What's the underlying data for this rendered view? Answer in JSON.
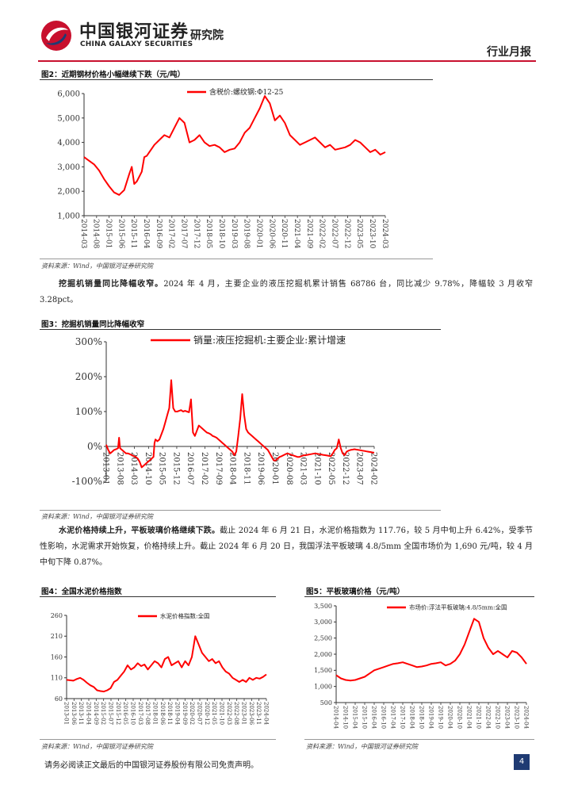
{
  "header": {
    "company_cn": "中国银河证券",
    "company_en": "CHINA GALAXY SECURITIES",
    "institute": "研究院",
    "report_type": "行业月报"
  },
  "figure2": {
    "title": "图2：近期钢材价格小幅继续下跌（元/吨）",
    "source": "资料来源：Wind，中国银河证券研究院",
    "chart_data": {
      "type": "line",
      "title": "",
      "xlabel": "",
      "ylabel": "",
      "ylim": [
        1000,
        6000
      ],
      "yticks": [
        "1,000",
        "2,000",
        "3,000",
        "4,000",
        "5,000",
        "6,000"
      ],
      "xticks": [
        "2014-03",
        "2014-08",
        "2015-01",
        "2015-06",
        "2015-11",
        "2016-04",
        "2016-09",
        "2017-02",
        "2017-07",
        "2017-12",
        "2018-05",
        "2018-10",
        "2019-03",
        "2019-08",
        "2020-01",
        "2020-06",
        "2020-11",
        "2021-04",
        "2021-09",
        "2022-02",
        "2022-07",
        "2022-12",
        "2023-05",
        "2023-10",
        "2024-03"
      ],
      "series": [
        {
          "name": "含税价:螺纹钢:Φ12-25",
          "color": "#ff0000",
          "x": [
            0,
            2,
            4,
            6,
            8,
            10,
            12,
            14,
            16,
            18,
            19,
            20,
            21,
            22,
            23,
            24,
            25,
            26,
            28,
            30,
            32,
            34,
            36,
            38,
            40,
            42,
            44,
            46,
            48,
            50,
            52,
            54,
            56,
            58,
            60,
            62,
            64,
            66,
            68,
            70,
            72,
            74,
            76,
            78,
            80,
            82,
            84,
            86,
            88,
            90,
            92,
            94,
            96,
            98,
            100,
            102,
            104,
            106,
            108,
            110,
            112,
            114,
            116,
            118,
            120
          ],
          "y": [
            3400,
            3250,
            3100,
            2850,
            2500,
            2200,
            1950,
            1850,
            2050,
            2700,
            3000,
            2300,
            2400,
            2600,
            2800,
            3400,
            3450,
            3600,
            3900,
            4100,
            4300,
            4200,
            4600,
            5000,
            4800,
            4000,
            4100,
            4300,
            4000,
            3850,
            3900,
            3800,
            3600,
            3700,
            3750,
            4000,
            4400,
            4600,
            5000,
            5400,
            5900,
            5600,
            4900,
            5100,
            4800,
            4300,
            4100,
            3900,
            4000,
            4100,
            4200,
            4000,
            3800,
            3900,
            3700,
            3750,
            3800,
            3900,
            4100,
            4000,
            3800,
            3600,
            3700,
            3500,
            3600
          ]
        }
      ]
    }
  },
  "para1": {
    "lead": "挖掘机销量同比降幅收窄。",
    "text": "2024 年 4 月，主要企业的液压挖掘机累计销售 68786 台，同比减少 9.78%，降幅较 3 月收窄 3.28pct。"
  },
  "figure3": {
    "title": "图3：挖掘机销量同比降幅收窄",
    "source": "资料来源：Wind，中国银河证券研究院",
    "chart_data": {
      "type": "line",
      "title": "",
      "xlabel": "",
      "ylabel": "",
      "ylim": [
        -100,
        300
      ],
      "yticks": [
        "-100%",
        "0%",
        "100%",
        "200%",
        "300%"
      ],
      "xticks": [
        "2013-01",
        "2013-08",
        "2014-03",
        "2014-10",
        "2015-05",
        "2015-12",
        "2016-07",
        "2017-02",
        "2017-09",
        "2018-04",
        "2018-11",
        "2019-06",
        "2020-01",
        "2020-08",
        "2021-03",
        "2021-10",
        "2022-05",
        "2022-12",
        "2023-07",
        "2024-02"
      ],
      "series": [
        {
          "name": "销量:液压挖掘机:主要企业:累计增速",
          "color": "#ff0000",
          "x": [
            0,
            1,
            2,
            3,
            4,
            5,
            6,
            6.5,
            7,
            8,
            9,
            10,
            11,
            12,
            13,
            14,
            15,
            16,
            17,
            18,
            19,
            20,
            21,
            22,
            23,
            24,
            24.5,
            25,
            26,
            27,
            28,
            29,
            30,
            31,
            32,
            33,
            34,
            35,
            36,
            37,
            38,
            39,
            40,
            41,
            42,
            43,
            44,
            45,
            46,
            47,
            48,
            49,
            50,
            51,
            52,
            53,
            54,
            55,
            56,
            57,
            58,
            59,
            60,
            61,
            62,
            63,
            64,
            65,
            66,
            67,
            68,
            69,
            70,
            71,
            72,
            73,
            74,
            75,
            76,
            77,
            78,
            79,
            80,
            81,
            82,
            83,
            84,
            85,
            86,
            87,
            88,
            89,
            90,
            91,
            92,
            93,
            94,
            95,
            96,
            97,
            98,
            99,
            100,
            101,
            102,
            103,
            104,
            105,
            106,
            107,
            108,
            109,
            110,
            111,
            112,
            113,
            114,
            115,
            116,
            117,
            118,
            119,
            120,
            121,
            122,
            123,
            124,
            125,
            126,
            127,
            128,
            129,
            130,
            131,
            132,
            133,
            134,
            135,
            136
          ],
          "y": [
            5,
            -10,
            -20,
            -15,
            -10,
            -8,
            -5,
            25,
            -5,
            -10,
            -15,
            -20,
            -20,
            -22,
            -25,
            -28,
            -30,
            -35,
            -45,
            -60,
            -55,
            -50,
            -45,
            -40,
            -35,
            -30,
            10,
            20,
            15,
            20,
            35,
            50,
            70,
            90,
            110,
            190,
            110,
            100,
            100,
            102,
            104,
            100,
            102,
            100,
            98,
            135,
            40,
            30,
            45,
            60,
            55,
            50,
            45,
            40,
            38,
            35,
            30,
            28,
            25,
            20,
            15,
            10,
            5,
            0,
            -5,
            -10,
            -15,
            -25,
            -15,
            30,
            80,
            150,
            90,
            50,
            40,
            35,
            30,
            25,
            20,
            15,
            10,
            5,
            0,
            -5,
            -10,
            -20,
            -30,
            -40,
            -40,
            -35,
            -30,
            -28,
            -25,
            -22,
            -20,
            -22,
            -24,
            -26,
            -28,
            -30,
            -30,
            -28,
            -26,
            -25,
            -24,
            -23,
            -22,
            -21,
            -20,
            -21,
            -22,
            -23,
            -24,
            -25,
            -26,
            -27,
            -28,
            -20,
            -10,
            -5,
            20,
            -5,
            -20,
            -25,
            -15,
            -12,
            -10,
            -9,
            -8,
            -9,
            -10,
            -11,
            -12,
            -13,
            -14,
            -15,
            -16,
            -17,
            -18
          ]
        }
      ]
    }
  },
  "para2": {
    "lead": "水泥价格持续上升，平板玻璃价格继续下跌。",
    "text": "截止 2024 年 6 月 21 日，水泥价格指数为 117.76，较 5 月中旬上升 6.42%，受季节性影响，水泥需求开始恢复，价格持续上升。截止 2024 年 6 月 20 日，我国浮法平板玻璃 4.8/5mm 全国市场价为 1,690 元/吨，较 4 月中旬下降 0.87%。"
  },
  "figure4": {
    "title": "图4：全国水泥价格指数",
    "source": "资料来源：Wind，中国银河证券研究院",
    "chart_data": {
      "type": "line",
      "title": "",
      "xlabel": "",
      "ylabel": "",
      "ylim": [
        60,
        260
      ],
      "yticks": [
        "60",
        "110",
        "160",
        "210",
        "260"
      ],
      "xticks": [
        "2013-01",
        "2013-06",
        "2013-11",
        "2014-04",
        "2014-09",
        "2015-02",
        "2015-07",
        "2015-12",
        "2016-05",
        "2016-10",
        "2017-03",
        "2017-08",
        "2018-01",
        "2018-06",
        "2018-11",
        "2019-04",
        "2019-09",
        "2020-02",
        "2020-07",
        "2020-12",
        "2021-05",
        "2021-10",
        "2022-03",
        "2022-08",
        "2023-01",
        "2023-06",
        "2023-11",
        "2024-04"
      ],
      "series": [
        {
          "name": "水泥价格指数:全国",
          "color": "#ff0000",
          "x": [
            0,
            4,
            8,
            12,
            16,
            20,
            24,
            28,
            32,
            36,
            40,
            44,
            48,
            52,
            56,
            60,
            64,
            68,
            72,
            76,
            80,
            84,
            88,
            92,
            96,
            100,
            104,
            108,
            112,
            116,
            120,
            124,
            128,
            132,
            136,
            140,
            144,
            148,
            152,
            156,
            160,
            164,
            168,
            172,
            176,
            180,
            184,
            188,
            192,
            196,
            200,
            204,
            208,
            212,
            216,
            220,
            224,
            228,
            232,
            236
          ],
          "y": [
            105,
            104,
            103,
            107,
            110,
            105,
            98,
            92,
            88,
            80,
            78,
            77,
            80,
            85,
            100,
            105,
            115,
            125,
            140,
            130,
            135,
            145,
            138,
            142,
            130,
            140,
            150,
            145,
            135,
            155,
            160,
            140,
            145,
            150,
            135,
            150,
            140,
            160,
            210,
            190,
            170,
            160,
            150,
            155,
            145,
            150,
            135,
            125,
            120,
            110,
            105,
            100,
            105,
            100,
            110,
            105,
            110,
            108,
            112,
            118
          ]
        }
      ]
    }
  },
  "figure5": {
    "title": "图5：平板玻璃价格（元/吨）",
    "source": "资料来源：Wind，中国银河证券研究院",
    "chart_data": {
      "type": "line",
      "title": "",
      "xlabel": "",
      "ylabel": "",
      "ylim": [
        500,
        3500
      ],
      "yticks": [
        "500",
        "1,000",
        "1,500",
        "2,000",
        "2,500",
        "3,000",
        "3,500"
      ],
      "xticks": [
        "2014-04",
        "2014-10",
        "2015-04",
        "2015-10",
        "2016-04",
        "2016-10",
        "2017-04",
        "2017-10",
        "2018-04",
        "2018-10",
        "2019-04",
        "2019-10",
        "2020-04",
        "2020-10",
        "2021-04",
        "2021-10",
        "2022-04",
        "2022-10",
        "2023-04",
        "2023-10",
        "2024-04"
      ],
      "series": [
        {
          "name": "市场价:浮法平板玻璃:4.8/5mm:全国",
          "color": "#ff0000",
          "x": [
            0,
            3,
            6,
            9,
            12,
            15,
            18,
            21,
            24,
            27,
            30,
            33,
            36,
            39,
            42,
            45,
            48,
            51,
            54,
            57,
            60,
            63,
            66,
            69,
            72,
            75,
            78,
            81,
            84,
            87,
            90,
            93,
            96,
            99,
            102,
            105,
            108,
            111,
            114,
            117,
            120
          ],
          "y": [
            1350,
            1250,
            1200,
            1180,
            1200,
            1250,
            1300,
            1400,
            1500,
            1550,
            1600,
            1650,
            1700,
            1720,
            1750,
            1700,
            1650,
            1600,
            1620,
            1650,
            1700,
            1720,
            1750,
            1650,
            1700,
            1800,
            2000,
            2300,
            2700,
            3100,
            3000,
            2500,
            2200,
            2000,
            2100,
            2000,
            1900,
            2100,
            2050,
            1900,
            1700
          ]
        }
      ]
    }
  },
  "footer": {
    "disclaimer": "请务必阅读正文最后的中国银河证券股份有限公司免责声明。",
    "page": "4"
  }
}
